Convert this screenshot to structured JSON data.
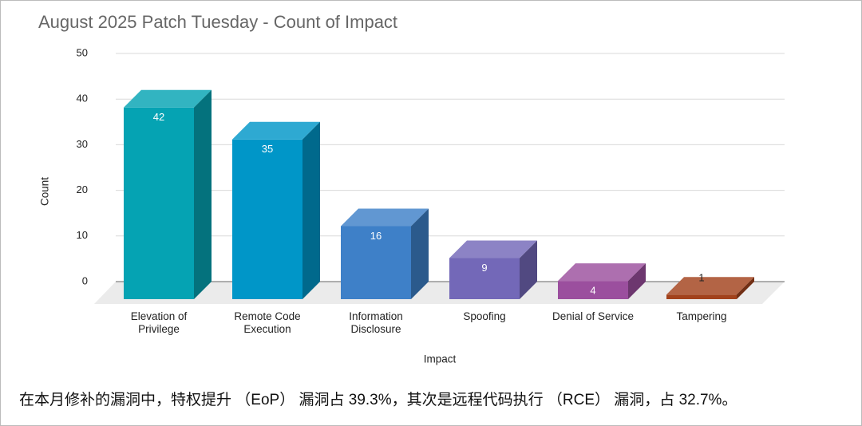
{
  "chart_data": {
    "type": "bar3d",
    "title": "August 2025 Patch Tuesday - Count of Impact",
    "x_label": "Impact",
    "y_label": "Count",
    "categories": [
      "Elevation of\nPrivilege",
      "Remote Code\nExecution",
      "Information\nDisclosure",
      "Spoofing",
      "Denial of Service",
      "Tampering"
    ],
    "values": [
      42,
      35,
      16,
      9,
      4,
      1
    ],
    "colors": [
      "#05a3b3",
      "#0096c8",
      "#3e80c8",
      "#7368b8",
      "#9b4f9e",
      "#a2421c"
    ],
    "ylim": [
      0,
      50
    ],
    "yticks": [
      0,
      10,
      20,
      30,
      40,
      50
    ],
    "grid": true
  },
  "caption": "在本月修补的漏洞中，特权提升 （EoP） 漏洞占 39.3%，其次是远程代码执行 （RCE） 漏洞，占 32.7%。"
}
